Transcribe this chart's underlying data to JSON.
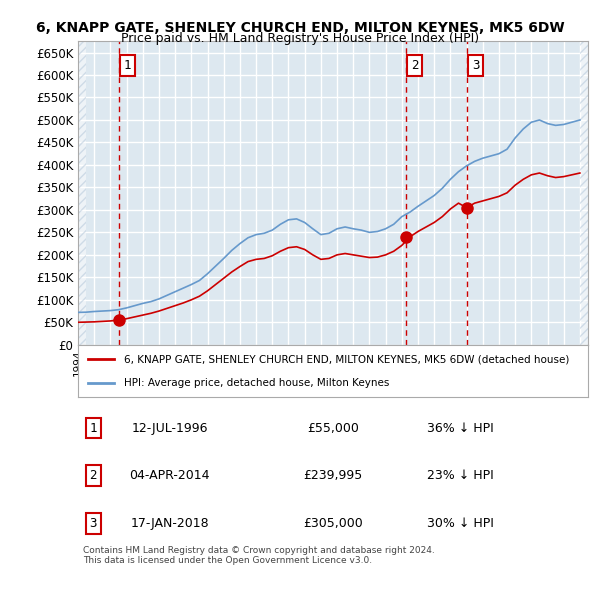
{
  "title1": "6, KNAPP GATE, SHENLEY CHURCH END, MILTON KEYNES, MK5 6DW",
  "title2": "Price paid vs. HM Land Registry's House Price Index (HPI)",
  "ylabel": "",
  "ylim": [
    0,
    675000
  ],
  "yticks": [
    0,
    50000,
    100000,
    150000,
    200000,
    250000,
    300000,
    350000,
    400000,
    450000,
    500000,
    550000,
    600000,
    650000
  ],
  "ytick_labels": [
    "£0",
    "£50K",
    "£100K",
    "£150K",
    "£200K",
    "£250K",
    "£300K",
    "£350K",
    "£400K",
    "£450K",
    "£500K",
    "£550K",
    "£600K",
    "£650K"
  ],
  "xlim_start": 1994.0,
  "xlim_end": 2025.5,
  "transactions": [
    {
      "label": 1,
      "date_year": 1996.54,
      "price": 55000
    },
    {
      "label": 2,
      "date_year": 2014.25,
      "price": 239995
    },
    {
      "label": 3,
      "date_year": 2018.04,
      "price": 305000
    }
  ],
  "sale_color": "#cc0000",
  "hpi_color": "#6699cc",
  "vline_color": "#cc0000",
  "legend_entries": [
    "6, KNAPP GATE, SHENLEY CHURCH END, MILTON KEYNES, MK5 6DW (detached house)",
    "HPI: Average price, detached house, Milton Keynes"
  ],
  "table_entries": [
    {
      "num": 1,
      "date": "12-JUL-1996",
      "price": "£55,000",
      "hpi": "36% ↓ HPI"
    },
    {
      "num": 2,
      "date": "04-APR-2014",
      "price": "£239,995",
      "hpi": "23% ↓ HPI"
    },
    {
      "num": 3,
      "date": "17-JAN-2018",
      "price": "£305,000",
      "hpi": "30% ↓ HPI"
    }
  ],
  "footer": "Contains HM Land Registry data © Crown copyright and database right 2024.\nThis data is licensed under the Open Government Licence v3.0.",
  "bg_color": "#dde8f0",
  "hatch_color": "#b0c4d8",
  "grid_color": "#ffffff"
}
